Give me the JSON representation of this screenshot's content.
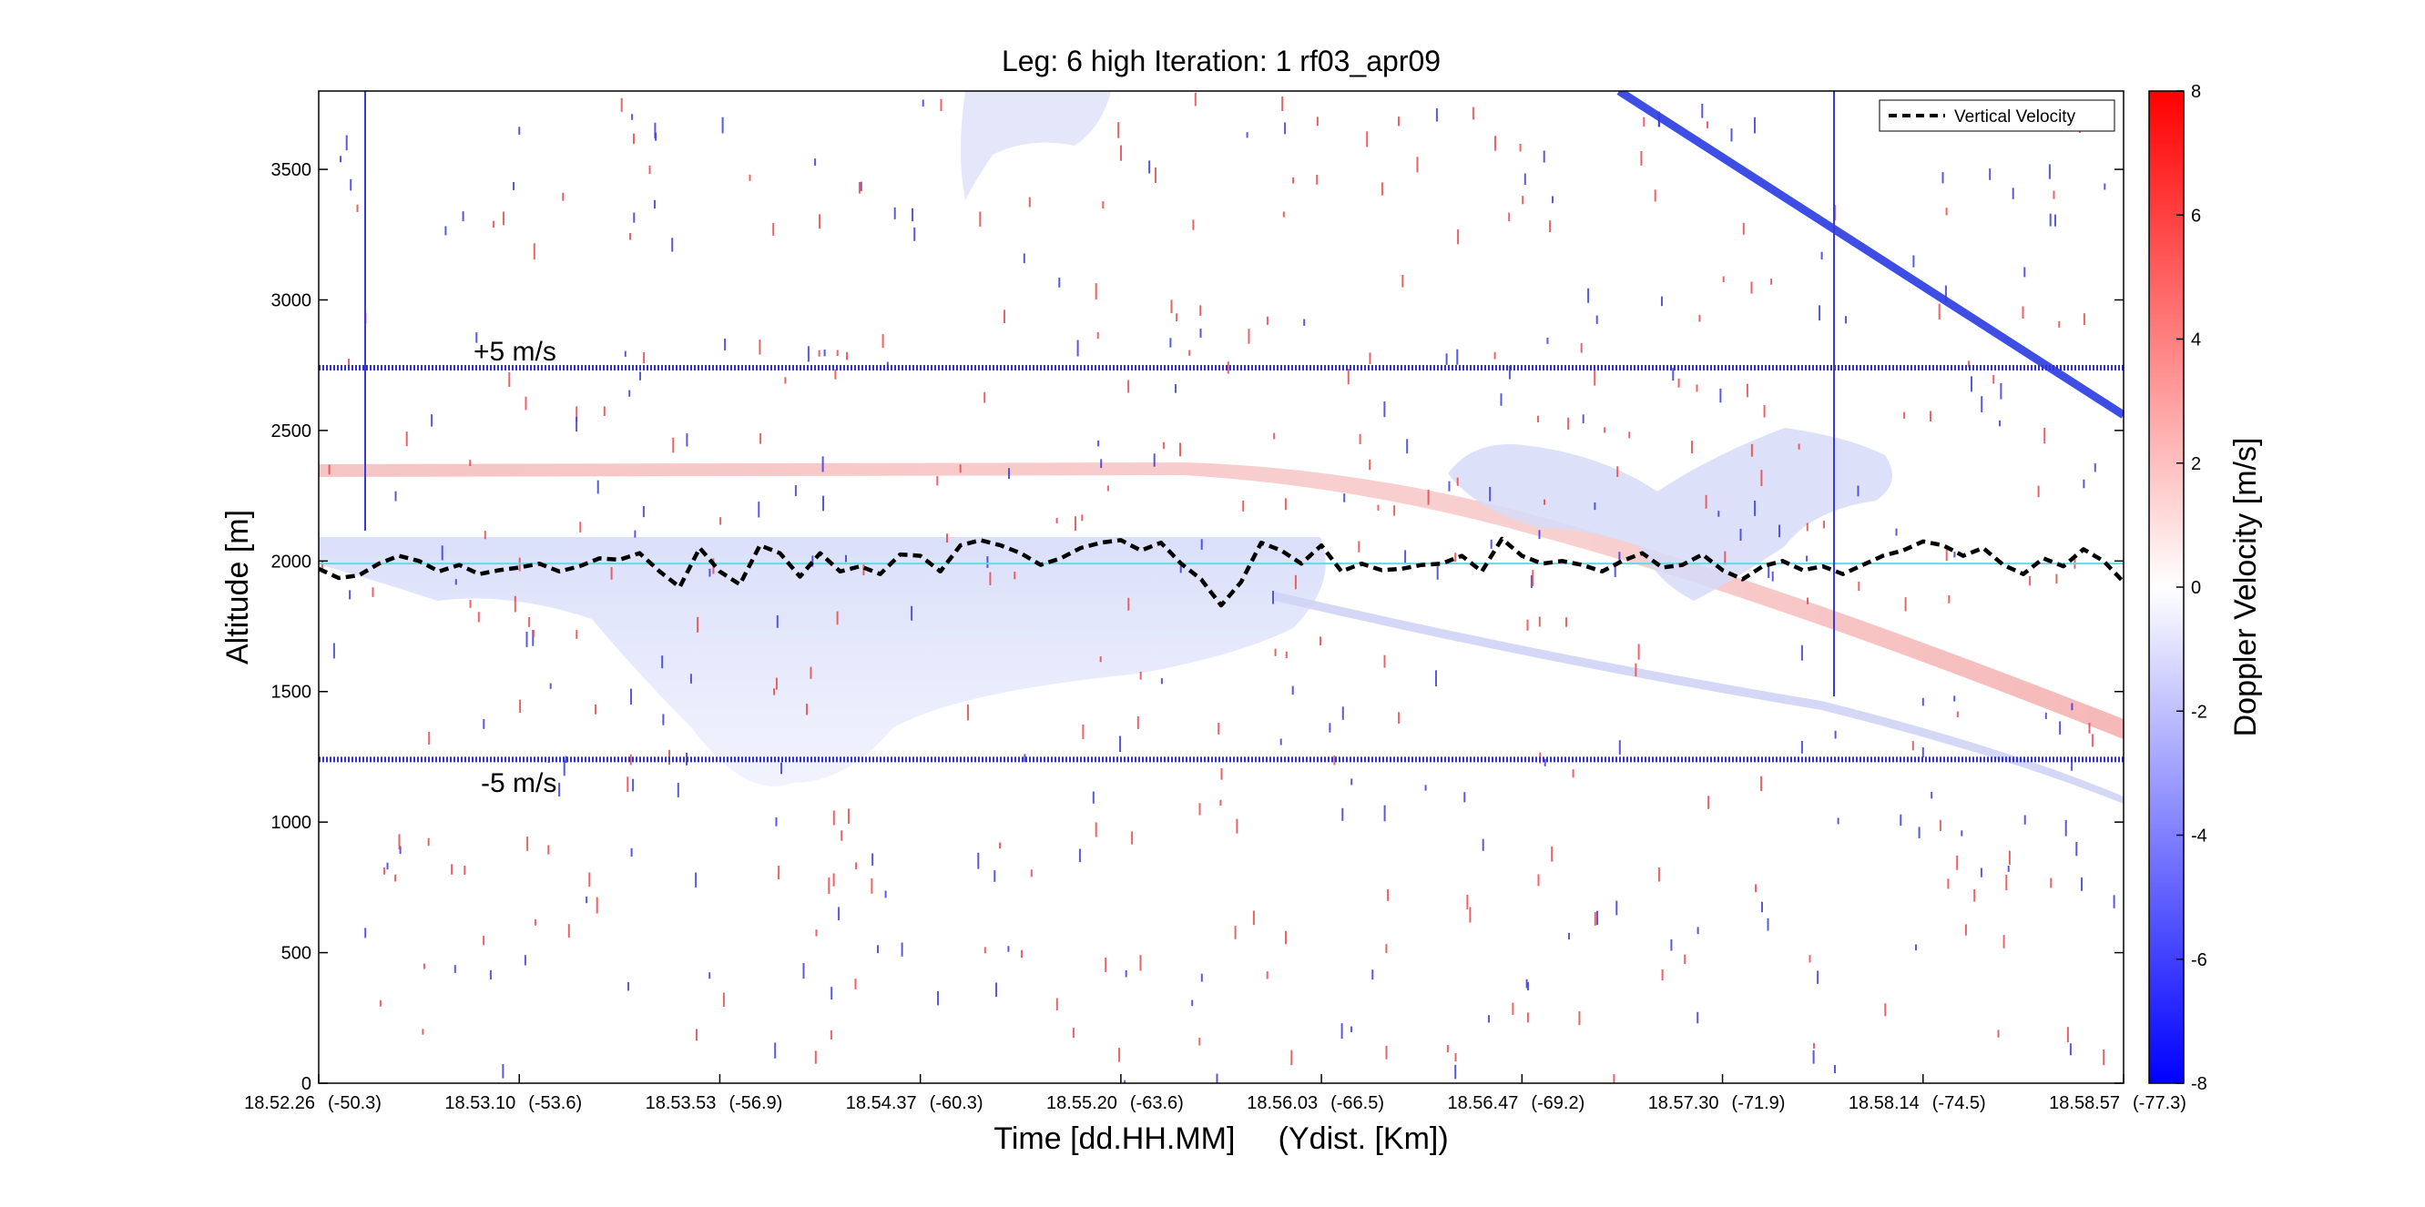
{
  "chart_data": {
    "type": "heatmap",
    "title": "Leg: 6 high Iteration: 1  rf03_apr09",
    "xlabel": "Time [dd.HH.MM]     (Ydist. [Km])",
    "ylabel": "Altitude [m]",
    "colorbar_label": "Doppler Velocity [m/s]",
    "ylim": [
      0,
      3800
    ],
    "yticks": [
      0,
      500,
      1000,
      1500,
      2000,
      2500,
      3000,
      3500
    ],
    "xticks": [
      {
        "time": "18.52.26",
        "dist": "(-50.3)"
      },
      {
        "time": "18.53.10",
        "dist": "(-53.6)"
      },
      {
        "time": "18.53.53",
        "dist": "(-56.9)"
      },
      {
        "time": "18.54.37",
        "dist": "(-60.3)"
      },
      {
        "time": "18.55.20",
        "dist": "(-63.6)"
      },
      {
        "time": "18.56.03",
        "dist": "(-66.5)"
      },
      {
        "time": "18.56.47",
        "dist": "(-69.2)"
      },
      {
        "time": "18.57.30",
        "dist": "(-71.9)"
      },
      {
        "time": "18.58.14",
        "dist": "(-74.5)"
      },
      {
        "time": "18.58.57",
        "dist": "(-77.3)"
      }
    ],
    "colorbar": {
      "min": -8,
      "max": 8,
      "ticks": [
        -8,
        -6,
        -4,
        -2,
        0,
        2,
        4,
        6,
        8
      ],
      "color_low": "#0000ff",
      "color_mid": "#ffffff",
      "color_high": "#ff0000"
    },
    "legend": {
      "position": "top-right",
      "entries": [
        "Vertical Velocity"
      ]
    },
    "reference_lines": {
      "upper": {
        "altitude": 2740,
        "label": "+5 m/s"
      },
      "lower": {
        "altitude": 1240,
        "label": "-5 m/s"
      },
      "zero_altitude": 1990,
      "color": "#2f2fd6",
      "zero_color": "#66d9e8"
    },
    "series": [
      {
        "name": "Vertical Velocity",
        "style": "dashed",
        "color": "#000000",
        "x_index": [
          0,
          0.1,
          0.2,
          0.3,
          0.4,
          0.5,
          0.6,
          0.7,
          0.8,
          0.9,
          1.0,
          1.1,
          1.2,
          1.3,
          1.4,
          1.5,
          1.6,
          1.7,
          1.8,
          1.9,
          2.0,
          2.1,
          2.2,
          2.3,
          2.4,
          2.5,
          2.6,
          2.7,
          2.8,
          2.9,
          3.0,
          3.1,
          3.2,
          3.3,
          3.4,
          3.5,
          3.6,
          3.7,
          3.8,
          3.9,
          4.0,
          4.1,
          4.2,
          4.3,
          4.4,
          4.5,
          4.6,
          4.7,
          4.8,
          4.9,
          5.0,
          5.1,
          5.2,
          5.3,
          5.4,
          5.5,
          5.6,
          5.7,
          5.8,
          5.9,
          6.0,
          6.1,
          6.2,
          6.3,
          6.4,
          6.5,
          6.6,
          6.7,
          6.8,
          6.9,
          7.0,
          7.1,
          7.2,
          7.3,
          7.4,
          7.5,
          7.6,
          7.7,
          7.8,
          7.9,
          8.0,
          8.1,
          8.2,
          8.3,
          8.4,
          8.5,
          8.6,
          8.7,
          8.8,
          8.9,
          9.0,
          9.1
        ],
        "altitude": [
          1970,
          1935,
          1945,
          1990,
          2020,
          2000,
          1960,
          1985,
          1950,
          1965,
          1975,
          1990,
          1960,
          1980,
          2010,
          2005,
          2030,
          1960,
          1900,
          2050,
          1960,
          1910,
          2060,
          2030,
          1940,
          2030,
          1960,
          1980,
          1950,
          2025,
          2020,
          1960,
          2060,
          2080,
          2060,
          2030,
          1985,
          2010,
          2050,
          2070,
          2080,
          2040,
          2070,
          1990,
          1930,
          1830,
          1920,
          2070,
          2040,
          1990,
          2060,
          1960,
          1990,
          1965,
          1970,
          1985,
          1990,
          2020,
          1960,
          2085,
          2020,
          1990,
          2000,
          1985,
          1960,
          2000,
          2030,
          1975,
          1985,
          2025,
          1965,
          1930,
          1980,
          2000,
          1965,
          1980,
          1950,
          1985,
          2020,
          2040,
          2075,
          2060,
          2020,
          2050,
          1985,
          1950,
          2010,
          1980,
          2045,
          2000,
          1920,
          1960
        ]
      }
    ]
  }
}
